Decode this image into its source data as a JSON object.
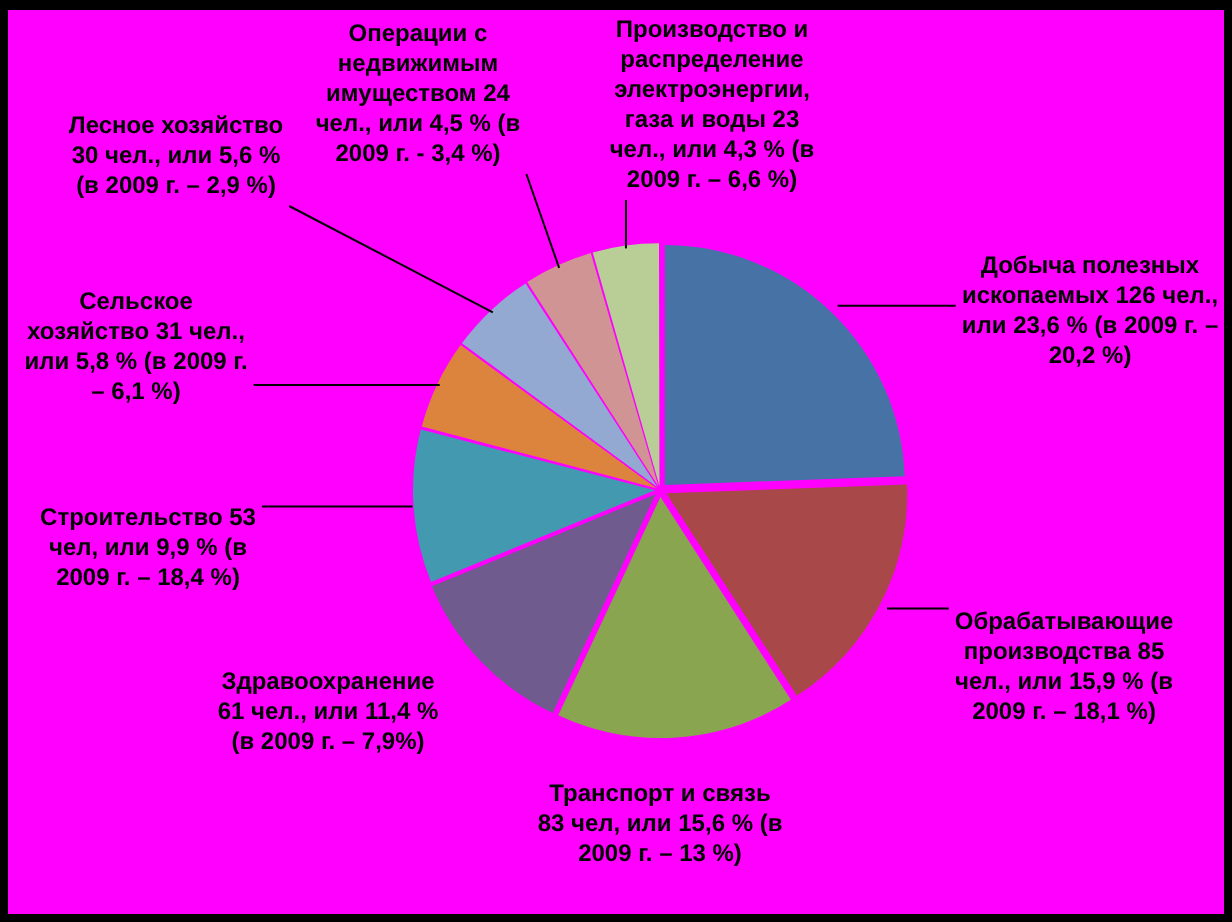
{
  "chart_data": {
    "type": "pie",
    "categories": [
      "Добыча полезных ископаемых",
      "Обрабатывающие производства",
      "Транспорт и связь",
      "Здравоохранение",
      "Строительство",
      "Сельское хозяйство",
      "Лесное хозяйство",
      "Операции с недвижимым имуществом",
      "Производство и распределение электроэнергии, газа и воды"
    ],
    "values": [
      126,
      85,
      83,
      61,
      53,
      31,
      30,
      24,
      23
    ],
    "colors": [
      "#4672a5",
      "#a84848",
      "#8aa54f",
      "#705b8f",
      "#4299b0",
      "#dc843e",
      "#94a9d1",
      "#d19494",
      "#b9cd97"
    ],
    "value_labels": [
      "126 чел., или 23,6 % (в 2009 г. – 20,2 %)",
      "85 чел., или 15,9 % (в 2009 г. – 18,1 %)",
      "83 чел, или 15,6 % (в 2009 г. – 13 %)",
      "61 чел., или 11,4 % (в 2009 г. – 7,9%)",
      "53 чел, или 9,9 % (в 2009 г. – 18,4 %)",
      "31 чел., или 5,8 % (в 2009 г. – 6,1 %)",
      "30 чел., или 5,6 % (в 2009 г. – 2,9 %)",
      "24 чел., или 4,5 % (в 2009 г. - 3,4 %)",
      "23 чел., или 4,3 % (в 2009 г. – 6,6 %)"
    ]
  }
}
